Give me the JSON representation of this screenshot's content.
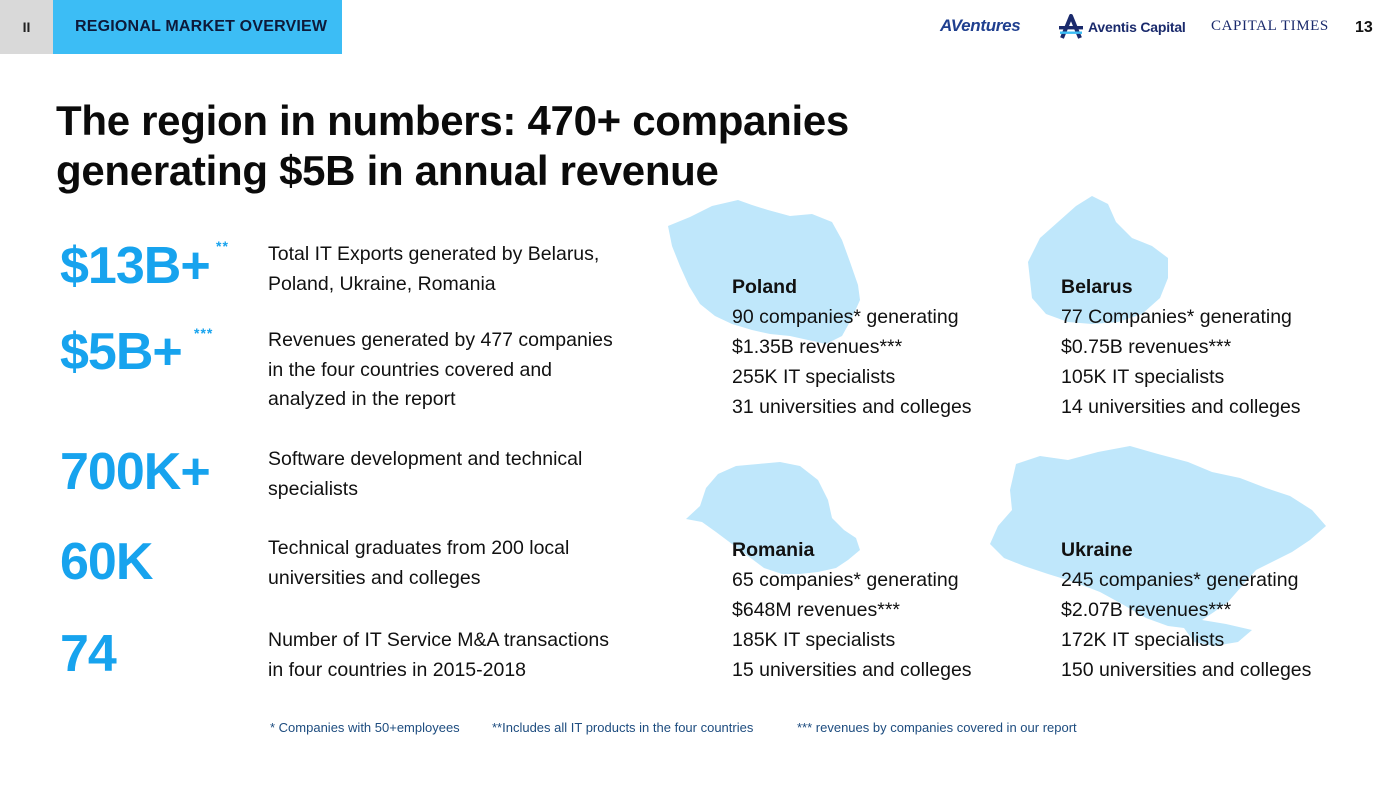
{
  "header": {
    "section_number": "II",
    "section_title": "REGIONAL MARKET OVERVIEW",
    "logos": {
      "aventures": "AVentures",
      "aventis": "Aventis Capital",
      "capital_times": "CAPITAL TIMES"
    },
    "page_number": "13"
  },
  "title_line1": "The region in numbers: 470+ companies",
  "title_line2": "generating $5B in annual revenue",
  "stats": [
    {
      "value": "$13B+",
      "sup": "**",
      "desc_line1": "Total IT Exports generated by Belarus,",
      "desc_line2": "Poland, Ukraine, Romania",
      "desc_line3": ""
    },
    {
      "value": "$5B+",
      "sup": "***",
      "desc_line1": "Revenues generated by 477 companies",
      "desc_line2": "in the four countries covered and",
      "desc_line3": "analyzed in the report"
    },
    {
      "value": "700K+",
      "sup": "",
      "desc_line1": "Software development and technical",
      "desc_line2": "specialists",
      "desc_line3": ""
    },
    {
      "value": "60K",
      "sup": "",
      "desc_line1": "Technical graduates from 200 local",
      "desc_line2": "universities and colleges",
      "desc_line3": ""
    },
    {
      "value": "74",
      "sup": "",
      "desc_line1": "Number of IT Service M&A transactions",
      "desc_line2": "in four countries in 2015-2018",
      "desc_line3": ""
    }
  ],
  "countries": {
    "poland": {
      "name": "Poland",
      "companies": "90 companies* generating",
      "revenue": "$1.35B revenues***",
      "specialists": "255K IT specialists",
      "universities": "31 universities and colleges"
    },
    "belarus": {
      "name": "Belarus",
      "companies": "77 Companies* generating",
      "revenue": "$0.75B revenues***",
      "specialists": "105K IT specialists",
      "universities": "14 universities and colleges"
    },
    "romania": {
      "name": "Romania",
      "companies": "65 companies* generating",
      "revenue": "$648M revenues***",
      "specialists": "185K IT specialists",
      "universities": "15 universities and colleges"
    },
    "ukraine": {
      "name": "Ukraine",
      "companies": "245 companies* generating",
      "revenue": "$2.07B revenues***",
      "specialists": "172K IT specialists",
      "universities": "150 universities and colleges"
    }
  },
  "footnotes": {
    "one": "* Companies with 50+employees",
    "two": "**Includes all IT products in the four countries",
    "three": "*** revenues by companies covered in our report"
  },
  "colors": {
    "accent": "#17a3ee",
    "tab": "#3cbdf5",
    "map": "#bfe7fb",
    "brand_red": "#e31e24",
    "brand_navy": "#1a2a6c"
  }
}
